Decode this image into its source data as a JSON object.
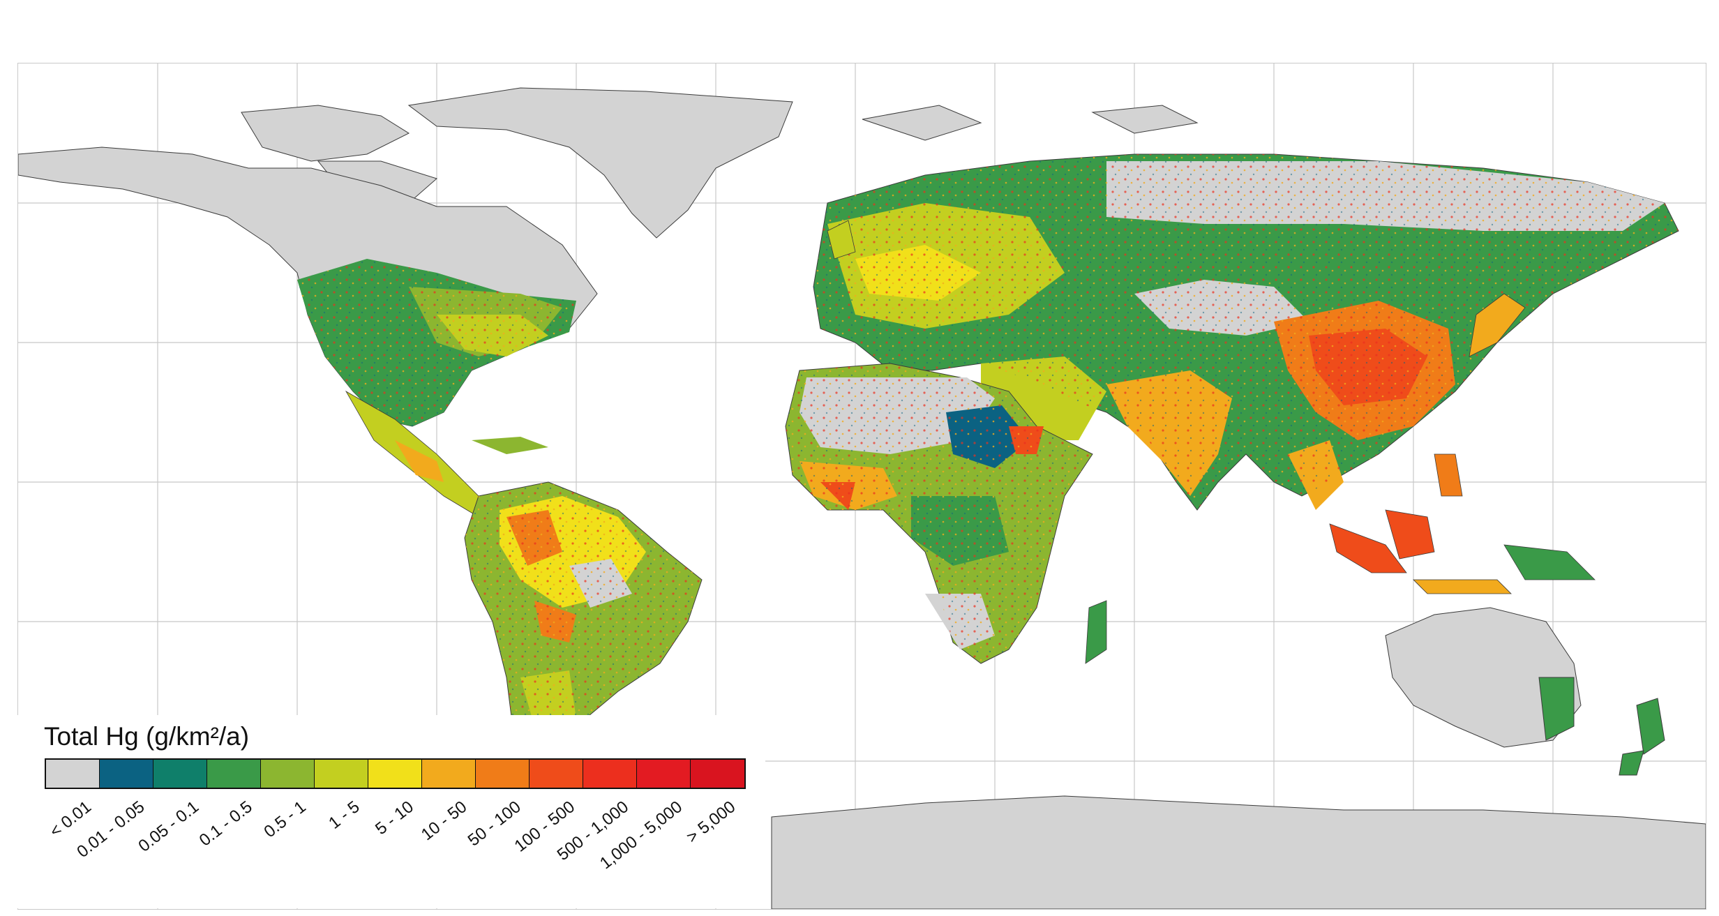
{
  "legend": {
    "title": "Total Hg (g/km²/a)",
    "classes": [
      {
        "label": "< 0.01",
        "color": "#d3d3d3"
      },
      {
        "label": "0.01 - 0.05",
        "color": "#0b6282"
      },
      {
        "label": "0.05 - 0.1",
        "color": "#0f7f6a"
      },
      {
        "label": "0.1 - 0.5",
        "color": "#3a9a48"
      },
      {
        "label": "0.5 - 1",
        "color": "#8cb630"
      },
      {
        "label": "1 - 5",
        "color": "#c3cf20"
      },
      {
        "label": "5 - 10",
        "color": "#f1e01a"
      },
      {
        "label": "10 - 50",
        "color": "#f2aa1d"
      },
      {
        "label": "50 - 100",
        "color": "#f07c18"
      },
      {
        "label": "100 - 500",
        "color": "#ef4c1a"
      },
      {
        "label": "500 - 1,000",
        "color": "#ec2f1e"
      },
      {
        "label": "1,000 - 5,000",
        "color": "#e31b22"
      },
      {
        "label": "> 5,000",
        "color": "#d9141f"
      }
    ]
  },
  "colors": {
    "no_data_land": "#d3d3d3",
    "ocean": "#ffffff",
    "graticule": "#c8c8c8",
    "coastline": "#3b3b3b"
  }
}
